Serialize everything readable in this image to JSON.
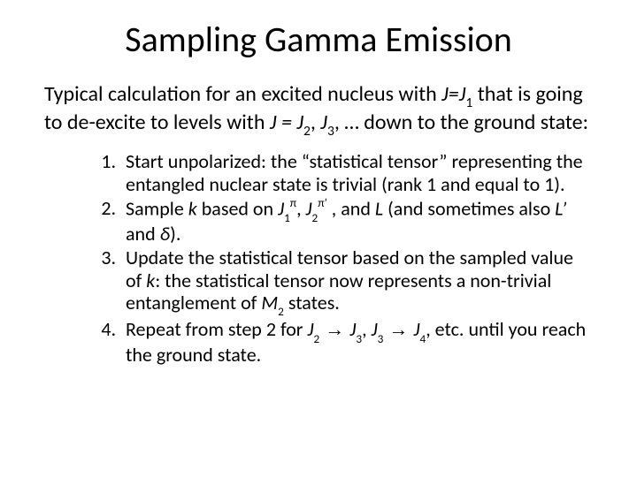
{
  "title": "Sampling Gamma Emission",
  "intro": {
    "prefix": "Typical calculation for an excited nucleus with ",
    "j_eq": "J=J",
    "sub1": "1",
    "mid1": " that is going to de-excite to levels with ",
    "j_eq2": "J = J",
    "sub2": "2",
    "comma": ", ",
    "j3": "J",
    "sub3": "3",
    "tail": ", … down to the ground state:"
  },
  "steps": {
    "s1": "Start unpolarized: the “statistical tensor” representing the entangled nuclear state is trivial (rank 1 and equal to 1).",
    "s2_a": "Sample ",
    "s2_k": "k",
    "s2_b": " based on ",
    "s2_j1": "J",
    "s2_j1sub": "1",
    "s2_j1sup": "π",
    "s2_c": ", ",
    "s2_j2": "J",
    "s2_j2sub": "2",
    "s2_j2sup": "π’",
    "s2_d": " , and ",
    "s2_L": "L",
    "s2_e": " (and sometimes also ",
    "s2_Lp": "L’",
    "s2_f": " and ",
    "s2_delta": "δ",
    "s2_g": ").",
    "s3_a": "Update the statistical tensor based on the sampled value of ",
    "s3_k": "k",
    "s3_b": ": the statistical tensor now represents a non-trivial entanglement of ",
    "s3_M": "M",
    "s3_Msub": "2",
    "s3_c": " states.",
    "s4_a": "Repeat from step 2 for ",
    "s4_j2": "J",
    "s4_j2sub": "2",
    "s4_arr1": " → ",
    "s4_j3": "J",
    "s4_j3sub": "3",
    "s4_comma": ", ",
    "s4_j3b": "J",
    "s4_j3bsub": "3",
    "s4_arr2": " → ",
    "s4_j4": "J",
    "s4_j4sub": "4",
    "s4_tail": ", etc. until you reach the ground state."
  },
  "colors": {
    "text": "#000000",
    "background": "#ffffff"
  },
  "typography": {
    "title_fontsize": 40,
    "intro_fontsize": 24,
    "list_fontsize": 22,
    "font_family": "Calibri"
  }
}
